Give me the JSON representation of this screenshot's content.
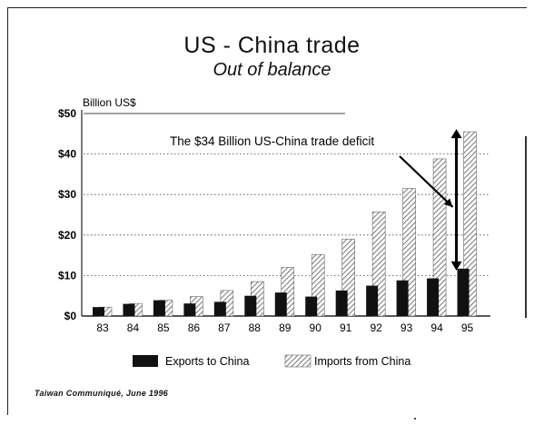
{
  "title": "US - China trade",
  "subtitle": "Out of balance",
  "source": "Taiwan Communiqué, June 1996",
  "chart_data": {
    "type": "bar",
    "title": "US - China trade",
    "subtitle": "Out of balance",
    "ylabel": "Billion US$",
    "ylim": [
      0,
      50
    ],
    "yticks": [
      "$0",
      "$10",
      "$20",
      "$30",
      "$40",
      "$50"
    ],
    "grid": true,
    "categories": [
      "83",
      "84",
      "85",
      "86",
      "87",
      "88",
      "89",
      "90",
      "91",
      "92",
      "93",
      "94",
      "95"
    ],
    "series": [
      {
        "name": "Exports to China",
        "color": "#111111",
        "values": [
          2.2,
          3.0,
          3.9,
          3.1,
          3.5,
          5.0,
          5.8,
          4.8,
          6.3,
          7.5,
          8.8,
          9.3,
          11.7
        ]
      },
      {
        "name": "Imports from China",
        "color": "#bbbbbb",
        "pattern": "hatched",
        "values": [
          2.2,
          3.1,
          3.9,
          4.8,
          6.3,
          8.5,
          12.0,
          15.2,
          19.0,
          25.7,
          31.5,
          38.8,
          45.5
        ]
      }
    ],
    "annotation": "The $34 Billion US-China trade deficit",
    "legend_position": "bottom"
  }
}
